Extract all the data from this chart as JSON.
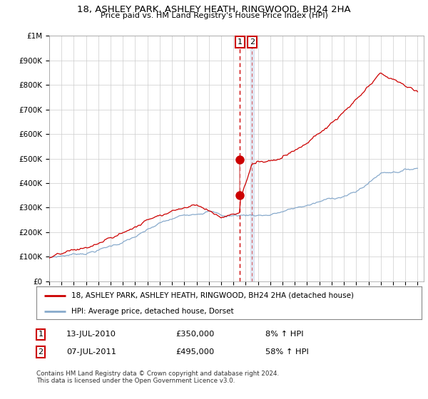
{
  "title": "18, ASHLEY PARK, ASHLEY HEATH, RINGWOOD, BH24 2HA",
  "subtitle": "Price paid vs. HM Land Registry's House Price Index (HPI)",
  "legend_line1": "18, ASHLEY PARK, ASHLEY HEATH, RINGWOOD, BH24 2HA (detached house)",
  "legend_line2": "HPI: Average price, detached house, Dorset",
  "annotation1_date": "13-JUL-2010",
  "annotation1_price": "£350,000",
  "annotation1_hpi": "8% ↑ HPI",
  "annotation2_date": "07-JUL-2011",
  "annotation2_price": "£495,000",
  "annotation2_hpi": "58% ↑ HPI",
  "footnote": "Contains HM Land Registry data © Crown copyright and database right 2024.\nThis data is licensed under the Open Government Licence v3.0.",
  "red_line_color": "#cc0000",
  "blue_line_color": "#88aacc",
  "marker_color": "#cc0000",
  "vline1_color": "#cc0000",
  "vline2_color": "#aabbdd",
  "grid_color": "#cccccc",
  "background_color": "#ffffff",
  "label_box_color": "#cc0000",
  "ylim": [
    0,
    1000000
  ],
  "sale1_year": 2010.54,
  "sale1_price": 350000,
  "sale2_year": 2011.51,
  "sale2_price": 495000,
  "xmin": 1995,
  "xmax": 2025.5
}
